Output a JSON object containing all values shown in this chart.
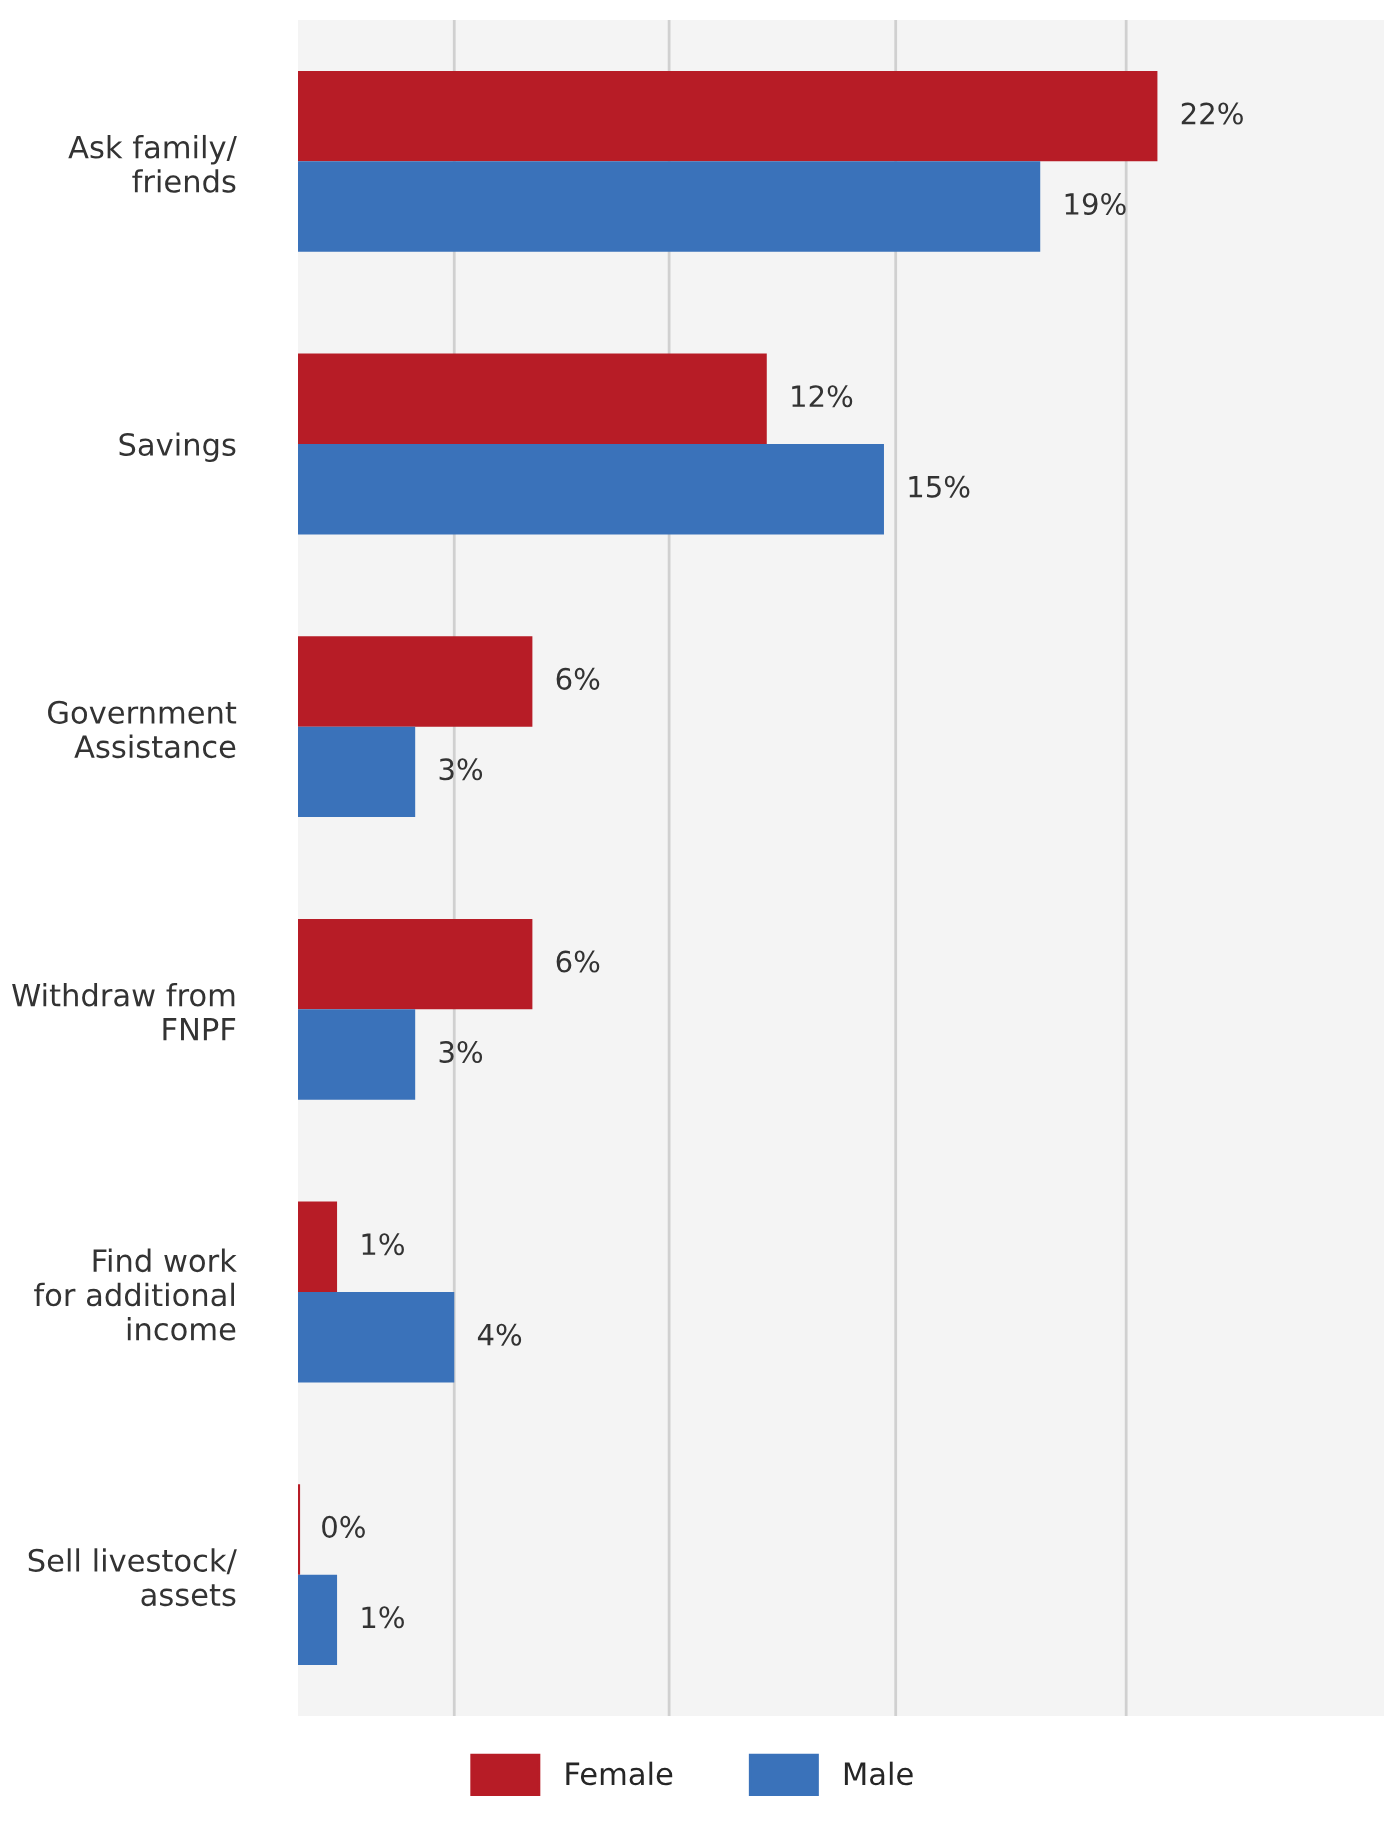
{
  "chart_data": {
    "type": "bar",
    "orientation": "horizontal",
    "categories": [
      "Ask family/\nfriends",
      "Savings",
      "Government\nAssistance",
      "Withdraw from\nFNPF",
      "Find work\nfor additional\nincome",
      "Sell livestock/\nassets"
    ],
    "series": [
      {
        "name": "Female",
        "color": "#b71c26",
        "values": [
          22,
          12,
          6,
          6,
          1,
          0
        ],
        "value_labels": [
          "22%",
          "12%",
          "6%",
          "6%",
          "1%",
          "0%"
        ]
      },
      {
        "name": "Male",
        "color": "#3a72ba",
        "values": [
          19,
          15,
          3,
          3,
          4,
          1
        ],
        "value_labels": [
          "19%",
          "15%",
          "3%",
          "3%",
          "4%",
          "1%"
        ]
      }
    ],
    "xlim": [
      0,
      27.8
    ],
    "xticks": [
      {
        "value": 4,
        "label": null
      },
      {
        "value": 9.5,
        "label": null
      },
      {
        "value": 15.3,
        "label": null
      },
      {
        "value": 21.2,
        "label": null
      }
    ],
    "grid": "x",
    "legend": "bottom"
  }
}
